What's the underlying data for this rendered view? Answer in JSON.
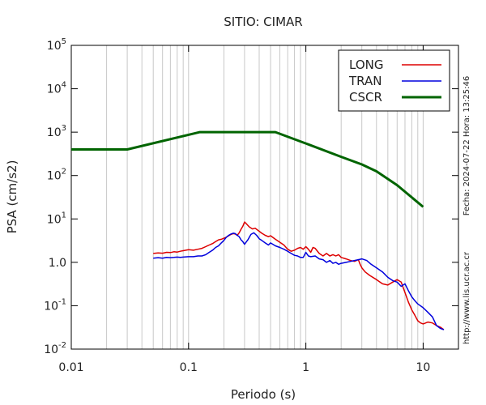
{
  "chart_data": {
    "type": "line",
    "title": "SITIO: CIMAR",
    "xlabel": "Periodo (s)",
    "ylabel": "PSA (cm/s2)",
    "xscale": "log",
    "yscale": "log",
    "xlim": [
      0.01,
      20
    ],
    "ylim": [
      0.01,
      100000
    ],
    "x_ticks": [
      {
        "value": 0.01,
        "label": "0.01"
      },
      {
        "value": 0.1,
        "label": "0.1"
      },
      {
        "value": 1,
        "label": "1"
      },
      {
        "value": 10,
        "label": "10"
      }
    ],
    "y_ticks": [
      {
        "value": 0.01,
        "base": "10",
        "exp": "-2"
      },
      {
        "value": 0.1,
        "base": "10",
        "exp": "-1"
      },
      {
        "value": 1,
        "base": "1.0",
        "exp": "0"
      },
      {
        "value": 10,
        "base": "10",
        "exp": "1"
      },
      {
        "value": 100,
        "base": "10",
        "exp": "2"
      },
      {
        "value": 1000,
        "base": "10",
        "exp": "3"
      },
      {
        "value": 10000,
        "base": "10",
        "exp": "4"
      },
      {
        "value": 100000,
        "base": "10",
        "exp": "5"
      }
    ],
    "grid": "vertical-minor",
    "legend_position": "top-right",
    "series": [
      {
        "name": "LONG",
        "color": "#dd0000",
        "points": [
          [
            0.05,
            1.6
          ],
          [
            0.055,
            1.65
          ],
          [
            0.06,
            1.62
          ],
          [
            0.065,
            1.7
          ],
          [
            0.07,
            1.68
          ],
          [
            0.075,
            1.75
          ],
          [
            0.08,
            1.72
          ],
          [
            0.085,
            1.8
          ],
          [
            0.09,
            1.85
          ],
          [
            0.1,
            1.95
          ],
          [
            0.11,
            1.9
          ],
          [
            0.12,
            2.0
          ],
          [
            0.13,
            2.1
          ],
          [
            0.14,
            2.3
          ],
          [
            0.15,
            2.5
          ],
          [
            0.16,
            2.7
          ],
          [
            0.17,
            3.0
          ],
          [
            0.18,
            3.3
          ],
          [
            0.19,
            3.4
          ],
          [
            0.2,
            3.6
          ],
          [
            0.21,
            3.8
          ],
          [
            0.22,
            4.1
          ],
          [
            0.23,
            4.4
          ],
          [
            0.24,
            4.6
          ],
          [
            0.25,
            4.5
          ],
          [
            0.26,
            4.2
          ],
          [
            0.27,
            4.8
          ],
          [
            0.28,
            5.8
          ],
          [
            0.29,
            6.8
          ],
          [
            0.3,
            8.5
          ],
          [
            0.31,
            7.8
          ],
          [
            0.33,
            6.5
          ],
          [
            0.35,
            5.9
          ],
          [
            0.37,
            6.1
          ],
          [
            0.4,
            5.2
          ],
          [
            0.42,
            4.7
          ],
          [
            0.45,
            4.2
          ],
          [
            0.48,
            3.9
          ],
          [
            0.5,
            4.1
          ],
          [
            0.55,
            3.4
          ],
          [
            0.6,
            2.9
          ],
          [
            0.65,
            2.5
          ],
          [
            0.7,
            2.0
          ],
          [
            0.75,
            1.8
          ],
          [
            0.8,
            1.9
          ],
          [
            0.85,
            2.1
          ],
          [
            0.9,
            2.2
          ],
          [
            0.95,
            2.0
          ],
          [
            1.0,
            2.3
          ],
          [
            1.05,
            2.0
          ],
          [
            1.1,
            1.7
          ],
          [
            1.15,
            2.2
          ],
          [
            1.2,
            2.1
          ],
          [
            1.3,
            1.6
          ],
          [
            1.4,
            1.4
          ],
          [
            1.5,
            1.6
          ],
          [
            1.6,
            1.4
          ],
          [
            1.7,
            1.5
          ],
          [
            1.8,
            1.4
          ],
          [
            1.9,
            1.5
          ],
          [
            2.0,
            1.3
          ],
          [
            2.2,
            1.2
          ],
          [
            2.4,
            1.1
          ],
          [
            2.6,
            1.05
          ],
          [
            2.8,
            1.15
          ],
          [
            2.9,
            0.9
          ],
          [
            3.0,
            0.75
          ],
          [
            3.2,
            0.6
          ],
          [
            3.5,
            0.5
          ],
          [
            4.0,
            0.4
          ],
          [
            4.5,
            0.32
          ],
          [
            5.0,
            0.3
          ],
          [
            5.5,
            0.35
          ],
          [
            6.0,
            0.4
          ],
          [
            6.5,
            0.35
          ],
          [
            7.0,
            0.2
          ],
          [
            7.5,
            0.12
          ],
          [
            8.0,
            0.08
          ],
          [
            8.5,
            0.06
          ],
          [
            9.0,
            0.045
          ],
          [
            9.5,
            0.04
          ],
          [
            10.0,
            0.038
          ],
          [
            11.0,
            0.042
          ],
          [
            12.0,
            0.04
          ],
          [
            13.0,
            0.035
          ],
          [
            14.0,
            0.032
          ],
          [
            15.0,
            0.028
          ]
        ]
      },
      {
        "name": "TRAN",
        "color": "#0000dd",
        "points": [
          [
            0.05,
            1.25
          ],
          [
            0.055,
            1.28
          ],
          [
            0.06,
            1.25
          ],
          [
            0.065,
            1.3
          ],
          [
            0.07,
            1.28
          ],
          [
            0.075,
            1.3
          ],
          [
            0.08,
            1.32
          ],
          [
            0.085,
            1.3
          ],
          [
            0.09,
            1.32
          ],
          [
            0.1,
            1.35
          ],
          [
            0.11,
            1.35
          ],
          [
            0.12,
            1.4
          ],
          [
            0.13,
            1.4
          ],
          [
            0.14,
            1.5
          ],
          [
            0.15,
            1.7
          ],
          [
            0.16,
            1.9
          ],
          [
            0.17,
            2.2
          ],
          [
            0.18,
            2.4
          ],
          [
            0.19,
            2.8
          ],
          [
            0.2,
            3.2
          ],
          [
            0.21,
            3.8
          ],
          [
            0.22,
            4.2
          ],
          [
            0.23,
            4.5
          ],
          [
            0.24,
            4.7
          ],
          [
            0.25,
            4.6
          ],
          [
            0.26,
            4.2
          ],
          [
            0.27,
            3.9
          ],
          [
            0.28,
            3.3
          ],
          [
            0.29,
            3.0
          ],
          [
            0.3,
            2.6
          ],
          [
            0.32,
            3.3
          ],
          [
            0.34,
            4.4
          ],
          [
            0.36,
            4.8
          ],
          [
            0.38,
            4.2
          ],
          [
            0.4,
            3.5
          ],
          [
            0.42,
            3.2
          ],
          [
            0.45,
            2.8
          ],
          [
            0.48,
            2.5
          ],
          [
            0.5,
            2.8
          ],
          [
            0.55,
            2.4
          ],
          [
            0.6,
            2.2
          ],
          [
            0.65,
            2.0
          ],
          [
            0.7,
            1.8
          ],
          [
            0.75,
            1.6
          ],
          [
            0.8,
            1.45
          ],
          [
            0.85,
            1.4
          ],
          [
            0.9,
            1.3
          ],
          [
            0.95,
            1.3
          ],
          [
            1.0,
            1.7
          ],
          [
            1.05,
            1.4
          ],
          [
            1.1,
            1.35
          ],
          [
            1.2,
            1.4
          ],
          [
            1.3,
            1.2
          ],
          [
            1.4,
            1.15
          ],
          [
            1.5,
            1.0
          ],
          [
            1.6,
            1.1
          ],
          [
            1.7,
            0.95
          ],
          [
            1.8,
            1.0
          ],
          [
            1.9,
            0.9
          ],
          [
            2.0,
            0.95
          ],
          [
            2.2,
            1.0
          ],
          [
            2.4,
            1.05
          ],
          [
            2.6,
            1.1
          ],
          [
            2.8,
            1.15
          ],
          [
            3.0,
            1.2
          ],
          [
            3.3,
            1.1
          ],
          [
            3.6,
            0.9
          ],
          [
            4.0,
            0.75
          ],
          [
            4.5,
            0.6
          ],
          [
            5.0,
            0.45
          ],
          [
            5.5,
            0.38
          ],
          [
            6.0,
            0.35
          ],
          [
            6.5,
            0.28
          ],
          [
            7.0,
            0.32
          ],
          [
            7.5,
            0.22
          ],
          [
            8.0,
            0.16
          ],
          [
            8.5,
            0.13
          ],
          [
            9.0,
            0.11
          ],
          [
            10.0,
            0.09
          ],
          [
            11.0,
            0.07
          ],
          [
            12.0,
            0.055
          ],
          [
            13.0,
            0.035
          ],
          [
            14.0,
            0.03
          ],
          [
            15.0,
            0.028
          ]
        ]
      },
      {
        "name": "CSCR",
        "color": "#006400",
        "points": [
          [
            0.01,
            400
          ],
          [
            0.03,
            400
          ],
          [
            0.125,
            1000
          ],
          [
            0.55,
            1000
          ],
          [
            1.0,
            550
          ],
          [
            2.0,
            270
          ],
          [
            3.0,
            180
          ],
          [
            4.0,
            125
          ],
          [
            6.0,
            60
          ],
          [
            10.0,
            19
          ]
        ]
      }
    ],
    "side_labels": {
      "date": "Fecha: 2024-07-22  Hora: 13:25:46",
      "url": "http://www.lis.ucr.ac.cr"
    }
  }
}
